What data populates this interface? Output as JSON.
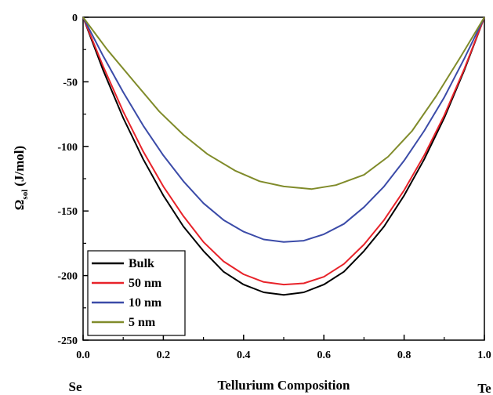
{
  "chart_data": {
    "type": "line",
    "xlabel": "Tellurium Composition",
    "ylabel_main": "Ω",
    "ylabel_sub": "sol",
    "ylabel_unit": "(J/mol)",
    "left_end_label": "Se",
    "right_end_label": "Te",
    "xlim": [
      0.0,
      1.0
    ],
    "ylim": [
      -250,
      0
    ],
    "xticks": [
      "0.0",
      "0.2",
      "0.4",
      "0.6",
      "0.8",
      "1.0"
    ],
    "yticks": [
      "0",
      "-50",
      "-100",
      "-150",
      "-200",
      "-250"
    ],
    "legend_position": "bottom-left",
    "series": [
      {
        "name": "Bulk",
        "color": "#000000",
        "x": [
          0.0,
          0.05,
          0.1,
          0.15,
          0.2,
          0.25,
          0.3,
          0.35,
          0.4,
          0.45,
          0.5,
          0.55,
          0.6,
          0.65,
          0.7,
          0.75,
          0.8,
          0.85,
          0.9,
          0.95,
          1.0
        ],
        "y": [
          0,
          -41,
          -78,
          -110,
          -138,
          -162,
          -181,
          -197,
          -207,
          -213,
          -215,
          -213,
          -207,
          -197,
          -181,
          -162,
          -138,
          -110,
          -78,
          -41,
          0
        ]
      },
      {
        "name": "50 nm",
        "color": "#e8232a",
        "x": [
          0.0,
          0.05,
          0.1,
          0.15,
          0.2,
          0.25,
          0.3,
          0.35,
          0.4,
          0.45,
          0.5,
          0.55,
          0.6,
          0.65,
          0.7,
          0.75,
          0.8,
          0.85,
          0.9,
          0.95,
          1.0
        ],
        "y": [
          0,
          -38,
          -73,
          -104,
          -131,
          -154,
          -174,
          -189,
          -199,
          -205,
          -207,
          -206,
          -201,
          -191,
          -176,
          -157,
          -134,
          -107,
          -76,
          -40,
          0
        ]
      },
      {
        "name": "10 nm",
        "color": "#3b4ba8",
        "x": [
          0.0,
          0.05,
          0.1,
          0.15,
          0.2,
          0.25,
          0.3,
          0.35,
          0.4,
          0.45,
          0.5,
          0.55,
          0.6,
          0.65,
          0.7,
          0.75,
          0.8,
          0.85,
          0.9,
          0.95,
          1.0
        ],
        "y": [
          0,
          -30,
          -58,
          -84,
          -107,
          -127,
          -144,
          -157,
          -166,
          -172,
          -174,
          -173,
          -168,
          -160,
          -147,
          -131,
          -111,
          -88,
          -62,
          -32,
          0
        ]
      },
      {
        "name": "5 nm",
        "color": "#808b2a",
        "x": [
          0.0,
          0.06,
          0.13,
          0.19,
          0.25,
          0.31,
          0.38,
          0.44,
          0.5,
          0.57,
          0.63,
          0.7,
          0.76,
          0.82,
          0.88,
          0.94,
          1.0
        ],
        "y": [
          0,
          -25,
          -51,
          -73,
          -91,
          -106,
          -119,
          -127,
          -131,
          -133,
          -130,
          -122,
          -108,
          -88,
          -61,
          -31,
          0
        ]
      }
    ]
  }
}
